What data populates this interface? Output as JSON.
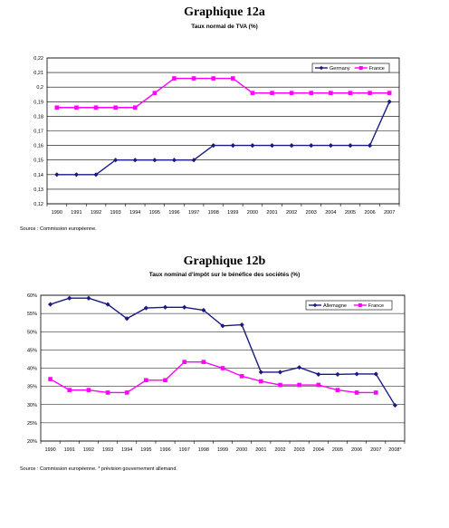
{
  "chart_data": [
    {
      "type": "line",
      "title": "Graphique 12a",
      "subtitle": "Taux normal de TVA (%)",
      "source": "Source : Commission européenne.",
      "categories": [
        "1990",
        "1991",
        "1992",
        "1993",
        "1994",
        "1995",
        "1996",
        "1997",
        "1998",
        "1999",
        "2000",
        "2001",
        "2002",
        "2003",
        "2004",
        "2005",
        "2006",
        "2007"
      ],
      "ylim": [
        0.12,
        0.22
      ],
      "yticks": [
        "0,12",
        "0,13",
        "0,14",
        "0,15",
        "0,16",
        "0,17",
        "0,18",
        "0,19",
        "0,2",
        "0,21",
        "0,22"
      ],
      "grid": true,
      "legend_position": "top-right",
      "series": [
        {
          "name": "Germany",
          "color": "#1a1a80",
          "marker": "diamond",
          "values": [
            0.14,
            0.14,
            0.14,
            0.15,
            0.15,
            0.15,
            0.15,
            0.15,
            0.16,
            0.16,
            0.16,
            0.16,
            0.16,
            0.16,
            0.16,
            0.16,
            0.16,
            0.19
          ]
        },
        {
          "name": "France",
          "color": "#ff00ff",
          "marker": "square",
          "values": [
            0.186,
            0.186,
            0.186,
            0.186,
            0.186,
            0.196,
            0.206,
            0.206,
            0.206,
            0.206,
            0.196,
            0.196,
            0.196,
            0.196,
            0.196,
            0.196,
            0.196,
            0.196
          ]
        }
      ]
    },
    {
      "type": "line",
      "title": "Graphique 12b",
      "subtitle": "Taux nominal d'impôt sur le bénéfice des sociétés (%)",
      "source": "Source : Commission européenne. * prévision gouvernement allemand.",
      "categories": [
        "1990",
        "1991",
        "1992",
        "1993",
        "1994",
        "1995",
        "1996",
        "1997",
        "1998",
        "1999",
        "2000",
        "2001",
        "2002",
        "2003",
        "2004",
        "2005",
        "2006",
        "2007",
        "2008*"
      ],
      "ylim": [
        20,
        60
      ],
      "yticks": [
        "20%",
        "25%",
        "30%",
        "35%",
        "40%",
        "45%",
        "50%",
        "55%",
        "60%"
      ],
      "grid": true,
      "legend_position": "top-right",
      "series": [
        {
          "name": "Allemagne",
          "color": "#1a1a80",
          "marker": "diamond",
          "values": [
            57.5,
            59.2,
            59.2,
            57.5,
            53.6,
            56.5,
            56.7,
            56.7,
            55.9,
            51.6,
            51.9,
            38.9,
            38.9,
            40.2,
            38.3,
            38.3,
            38.4,
            38.4,
            29.8
          ]
        },
        {
          "name": "France",
          "color": "#ff00ff",
          "marker": "square",
          "values": [
            37.0,
            34.0,
            34.0,
            33.3,
            33.3,
            36.7,
            36.7,
            41.7,
            41.7,
            40.0,
            37.8,
            36.4,
            35.4,
            35.4,
            35.4,
            34.0,
            33.3,
            33.3,
            null
          ]
        }
      ]
    }
  ]
}
